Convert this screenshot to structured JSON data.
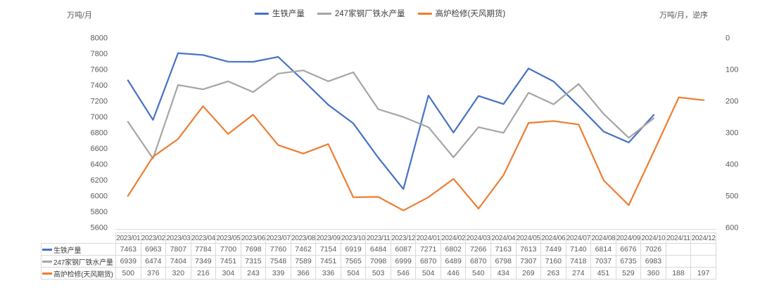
{
  "header": {
    "left_axis_unit": "万吨/月",
    "right_axis_unit": "万吨/月，逆序"
  },
  "colors": {
    "series_pig_iron": "#4472C4",
    "series_hot_metal": "#A5A5A5",
    "series_maintenance": "#ED7D31",
    "axis_text": "#595959",
    "table_border": "#d9d9d9"
  },
  "chart_data": {
    "type": "line",
    "title": "",
    "categories": [
      "2023/01",
      "2023/02",
      "2023/03",
      "2023/04",
      "2023/05",
      "2023/06",
      "2023/07",
      "2023/08",
      "2023/09",
      "2023/10",
      "2023/11",
      "2023/12",
      "2024/01",
      "2024/02",
      "2024/03",
      "2024/04",
      "2024/05",
      "2024/06",
      "2024/07",
      "2024/08",
      "2024/09",
      "2024/10",
      "2024/11",
      "2024/12"
    ],
    "series": [
      {
        "name": "生铁产量",
        "color": "#4472C4",
        "axis": "left",
        "values": [
          7463,
          6963,
          7807,
          7784,
          7700,
          7698,
          7760,
          7462,
          7154,
          6919,
          6484,
          6087,
          7271,
          6802,
          7266,
          7163,
          7613,
          7449,
          7140,
          6814,
          6676,
          7026,
          null,
          null
        ]
      },
      {
        "name": "247家钢厂铁水产量",
        "color": "#A5A5A5",
        "axis": "left",
        "values": [
          6939,
          6474,
          7404,
          7349,
          7451,
          7315,
          7548,
          7589,
          7451,
          7565,
          7098,
          6999,
          6870,
          6489,
          6870,
          6798,
          7307,
          7160,
          7418,
          7037,
          6735,
          6983,
          null,
          null
        ]
      },
      {
        "name": "高炉检修(天风期货)",
        "color": "#ED7D31",
        "axis": "right",
        "values": [
          500,
          376,
          320,
          216,
          304,
          243,
          339,
          366,
          336,
          504,
          503,
          546,
          504,
          446,
          540,
          434,
          269,
          263,
          274,
          451,
          529,
          360,
          188,
          197
        ]
      }
    ],
    "left_axis": {
      "min": 5600,
      "max": 8000,
      "step": 200,
      "ticks": [
        8000,
        7800,
        7600,
        7400,
        7200,
        7000,
        6800,
        6600,
        6400,
        6200,
        6000,
        5800,
        5600
      ]
    },
    "right_axis": {
      "min": 0,
      "max": 600,
      "step": 100,
      "reversed": true,
      "ticks": [
        0,
        100,
        200,
        300,
        400,
        500,
        600
      ]
    },
    "grid": false,
    "legend_position": "top"
  }
}
